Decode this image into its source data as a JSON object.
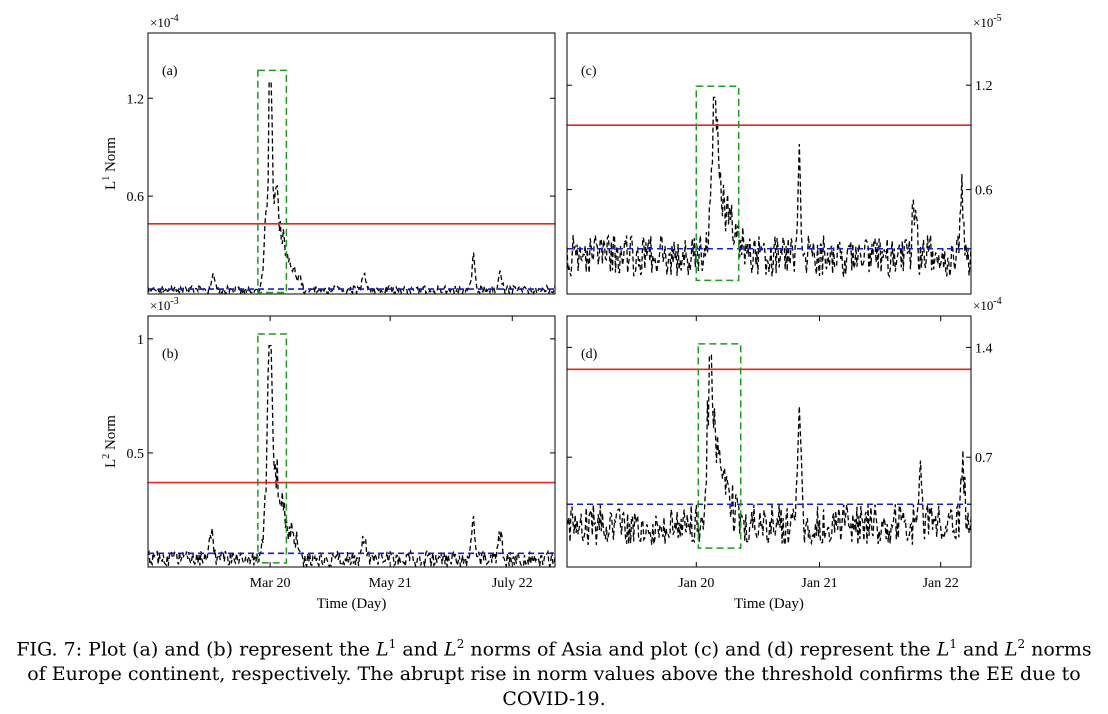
{
  "caption": {
    "prefix": "FIG. 7:",
    "text_1": "Plot (a) and (b) represent the",
    "norm_L": "L",
    "sup_1": "1",
    "and_1": "and",
    "sup_2": "2",
    "text_2": "norms of Asia and plot (c) and (d) represent the",
    "and_2": "and",
    "text_3": "norms of Europe continent, respectively. The abrupt rise in norm values above the threshold confirms the EE due to COVID-19."
  },
  "colors": {
    "signal": "#000000",
    "threshold": "#e8281e",
    "baseline": "#1a1ad9",
    "highlight_box": "#1f9a1f"
  },
  "chart_data": [
    {
      "panel": "(a)",
      "type": "line",
      "ylabel_base": "L",
      "ylabel_sup": "1",
      "ylabel_rest": " Norm",
      "exponent_base": "×10",
      "exponent_power": "-4",
      "yticks": [
        "0.6",
        "1.2"
      ],
      "ytick_values": [
        0.6,
        1.2
      ],
      "ylim": [
        0,
        1.6
      ],
      "xlim": [
        0,
        1000
      ],
      "xticks": [],
      "threshold": 0.43,
      "baseline": 0.03,
      "highlight_x": [
        270,
        340
      ],
      "spike_x": 300,
      "spike_peak": 1.3,
      "noise_mean": 0.025,
      "noise_amp": 0.025,
      "bumps": [
        [
          160,
          0.1
        ],
        [
          530,
          0.1
        ],
        [
          800,
          0.22
        ],
        [
          865,
          0.12
        ]
      ]
    },
    {
      "panel": "(b)",
      "type": "line",
      "ylabel_base": "L",
      "ylabel_sup": "2",
      "ylabel_rest": " Norm",
      "exponent_base": "×10",
      "exponent_power": "-3",
      "yticks": [
        "0.5",
        "1"
      ],
      "ytick_values": [
        0.5,
        1.0
      ],
      "ylim": [
        0,
        1.1
      ],
      "xlim": [
        0,
        1000
      ],
      "xticks": [
        "Mar 20",
        "May 21",
        "July 22"
      ],
      "xtick_values": [
        300,
        595,
        895
      ],
      "xlabel": "Time (Day)",
      "threshold": 0.37,
      "baseline": 0.06,
      "highlight_x": [
        270,
        340
      ],
      "spike_x": 300,
      "spike_peak": 0.97,
      "noise_mean": 0.035,
      "noise_amp": 0.035,
      "bumps": [
        [
          155,
          0.17
        ],
        [
          530,
          0.15
        ],
        [
          800,
          0.22
        ],
        [
          865,
          0.14
        ]
      ]
    },
    {
      "panel": "(c)",
      "type": "line",
      "exponent_base": "×10",
      "exponent_power": "-5",
      "yticks": [
        "0.6",
        "1.2"
      ],
      "ytick_values": [
        0.6,
        1.2
      ],
      "ylim": [
        0,
        1.5
      ],
      "xlim": [
        0,
        1000
      ],
      "xticks": [],
      "threshold": 0.97,
      "baseline": 0.26,
      "highlight_x": [
        320,
        425
      ],
      "spike_x": 365,
      "spike_peak": 1.13,
      "noise_mean": 0.22,
      "noise_amp": 0.12,
      "bumps": [
        [
          575,
          0.6
        ],
        [
          860,
          0.45
        ],
        [
          978,
          0.48
        ]
      ]
    },
    {
      "panel": "(d)",
      "type": "line",
      "exponent_base": "×10",
      "exponent_power": "-4",
      "yticks": [
        "0.7",
        "1.4"
      ],
      "ytick_values": [
        0.7,
        1.4
      ],
      "ylim": [
        0,
        1.6
      ],
      "xlim": [
        0,
        1000
      ],
      "xticks": [
        "Jan 20",
        "Jan 21",
        "Jan 22"
      ],
      "xtick_values": [
        320,
        625,
        925
      ],
      "xlabel": "Time (Day)",
      "threshold": 1.26,
      "baseline": 0.4,
      "highlight_x": [
        325,
        430
      ],
      "spike_x": 355,
      "spike_peak": 1.35,
      "noise_mean": 0.27,
      "noise_amp": 0.13,
      "bumps": [
        [
          575,
          0.88
        ],
        [
          875,
          0.6
        ],
        [
          980,
          0.55
        ]
      ]
    }
  ]
}
